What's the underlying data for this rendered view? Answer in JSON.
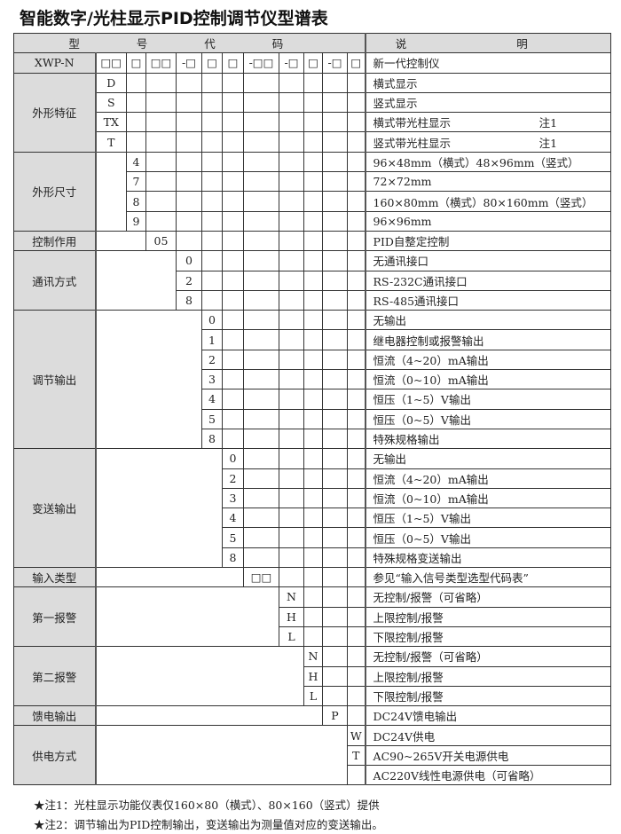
{
  "title": "智能数字/光柱显示PID控制调节仪型谱表",
  "header": {
    "code_label": "型 号 代 码",
    "desc_label": "说 明"
  },
  "model_row": {
    "model": "XWP-N",
    "code_slots": [
      "□□",
      "□",
      "□□",
      "-□",
      "□",
      "□",
      "-□□",
      "-□",
      "□",
      "-□",
      "□"
    ],
    "desc": "新一代控制仪"
  },
  "sections": [
    {
      "label": "外形特征",
      "col": 1,
      "rows": [
        {
          "code": "D",
          "desc": "横式显示"
        },
        {
          "code": "S",
          "desc": "竖式显示"
        },
        {
          "code": "TX",
          "desc": "横式带光柱显示",
          "note": "注1"
        },
        {
          "code": "T",
          "desc": "竖式带光柱显示",
          "note": "注1"
        }
      ]
    },
    {
      "label": "外形尺寸",
      "col": 2,
      "rows": [
        {
          "code": "4",
          "desc": "96×48mm（横式）48×96mm（竖式）"
        },
        {
          "code": "7",
          "desc": "72×72mm"
        },
        {
          "code": "8",
          "desc": "160×80mm（横式）80×160mm（竖式）"
        },
        {
          "code": "9",
          "desc": "96×96mm"
        }
      ]
    },
    {
      "label": "控制作用",
      "col": 3,
      "rows": [
        {
          "code": "05",
          "desc": "PID自整定控制"
        }
      ]
    },
    {
      "label": "通讯方式",
      "col": 4,
      "rows": [
        {
          "code": "0",
          "desc": "无通讯接口"
        },
        {
          "code": "2",
          "desc": "RS-232C通讯接口"
        },
        {
          "code": "8",
          "desc": "RS-485通讯接口"
        }
      ]
    },
    {
      "label": "调节输出",
      "col": 5,
      "rows": [
        {
          "code": "0",
          "desc": "无输出"
        },
        {
          "code": "1",
          "desc": "继电器控制或报警输出"
        },
        {
          "code": "2",
          "desc": "恒流（4~20）mA输出"
        },
        {
          "code": "3",
          "desc": "恒流（0~10）mA输出"
        },
        {
          "code": "4",
          "desc": "恒压（1~5）V输出"
        },
        {
          "code": "5",
          "desc": "恒压（0~5）V输出"
        },
        {
          "code": "8",
          "desc": "特殊规格输出"
        }
      ]
    },
    {
      "label": "变送输出",
      "col": 6,
      "rows": [
        {
          "code": "0",
          "desc": "无输出"
        },
        {
          "code": "2",
          "desc": "恒流（4~20）mA输出"
        },
        {
          "code": "3",
          "desc": "恒流（0~10）mA输出"
        },
        {
          "code": "4",
          "desc": "恒压（1~5）V输出"
        },
        {
          "code": "5",
          "desc": "恒压（0~5）V输出"
        },
        {
          "code": "8",
          "desc": "特殊规格变送输出"
        }
      ]
    },
    {
      "label": "输入类型",
      "col": 7,
      "rows": [
        {
          "code": "□□",
          "desc": "参见“输入信号类型选型代码表”"
        }
      ]
    },
    {
      "label": "第一报警",
      "col": 8,
      "rows": [
        {
          "code": "N",
          "desc": "无控制/报警（可省略）"
        },
        {
          "code": "H",
          "desc": "上限控制/报警"
        },
        {
          "code": "L",
          "desc": "下限控制/报警"
        }
      ]
    },
    {
      "label": "第二报警",
      "col": 9,
      "rows": [
        {
          "code": "N",
          "desc": "无控制/报警（可省略）"
        },
        {
          "code": "H",
          "desc": "上限控制/报警"
        },
        {
          "code": "L",
          "desc": "下限控制/报警"
        }
      ]
    },
    {
      "label": "馈电输出",
      "col": 10,
      "rows": [
        {
          "code": "P",
          "desc": "DC24V馈电输出"
        }
      ]
    },
    {
      "label": "供电方式",
      "col": 11,
      "rows": [
        {
          "code": "W",
          "desc": "DC24V供电"
        },
        {
          "code": "T",
          "desc": "AC90~265V开关电源供电"
        },
        {
          "code": "",
          "desc": "AC220V线性电源供电（可省略）"
        }
      ]
    }
  ],
  "notes": [
    "★注1：光柱显示功能仪表仅160×80（横式）、80×160（竖式）提供",
    "★注2：调节输出为PID控制输出，变送输出为测量值对应的变送输出。"
  ]
}
